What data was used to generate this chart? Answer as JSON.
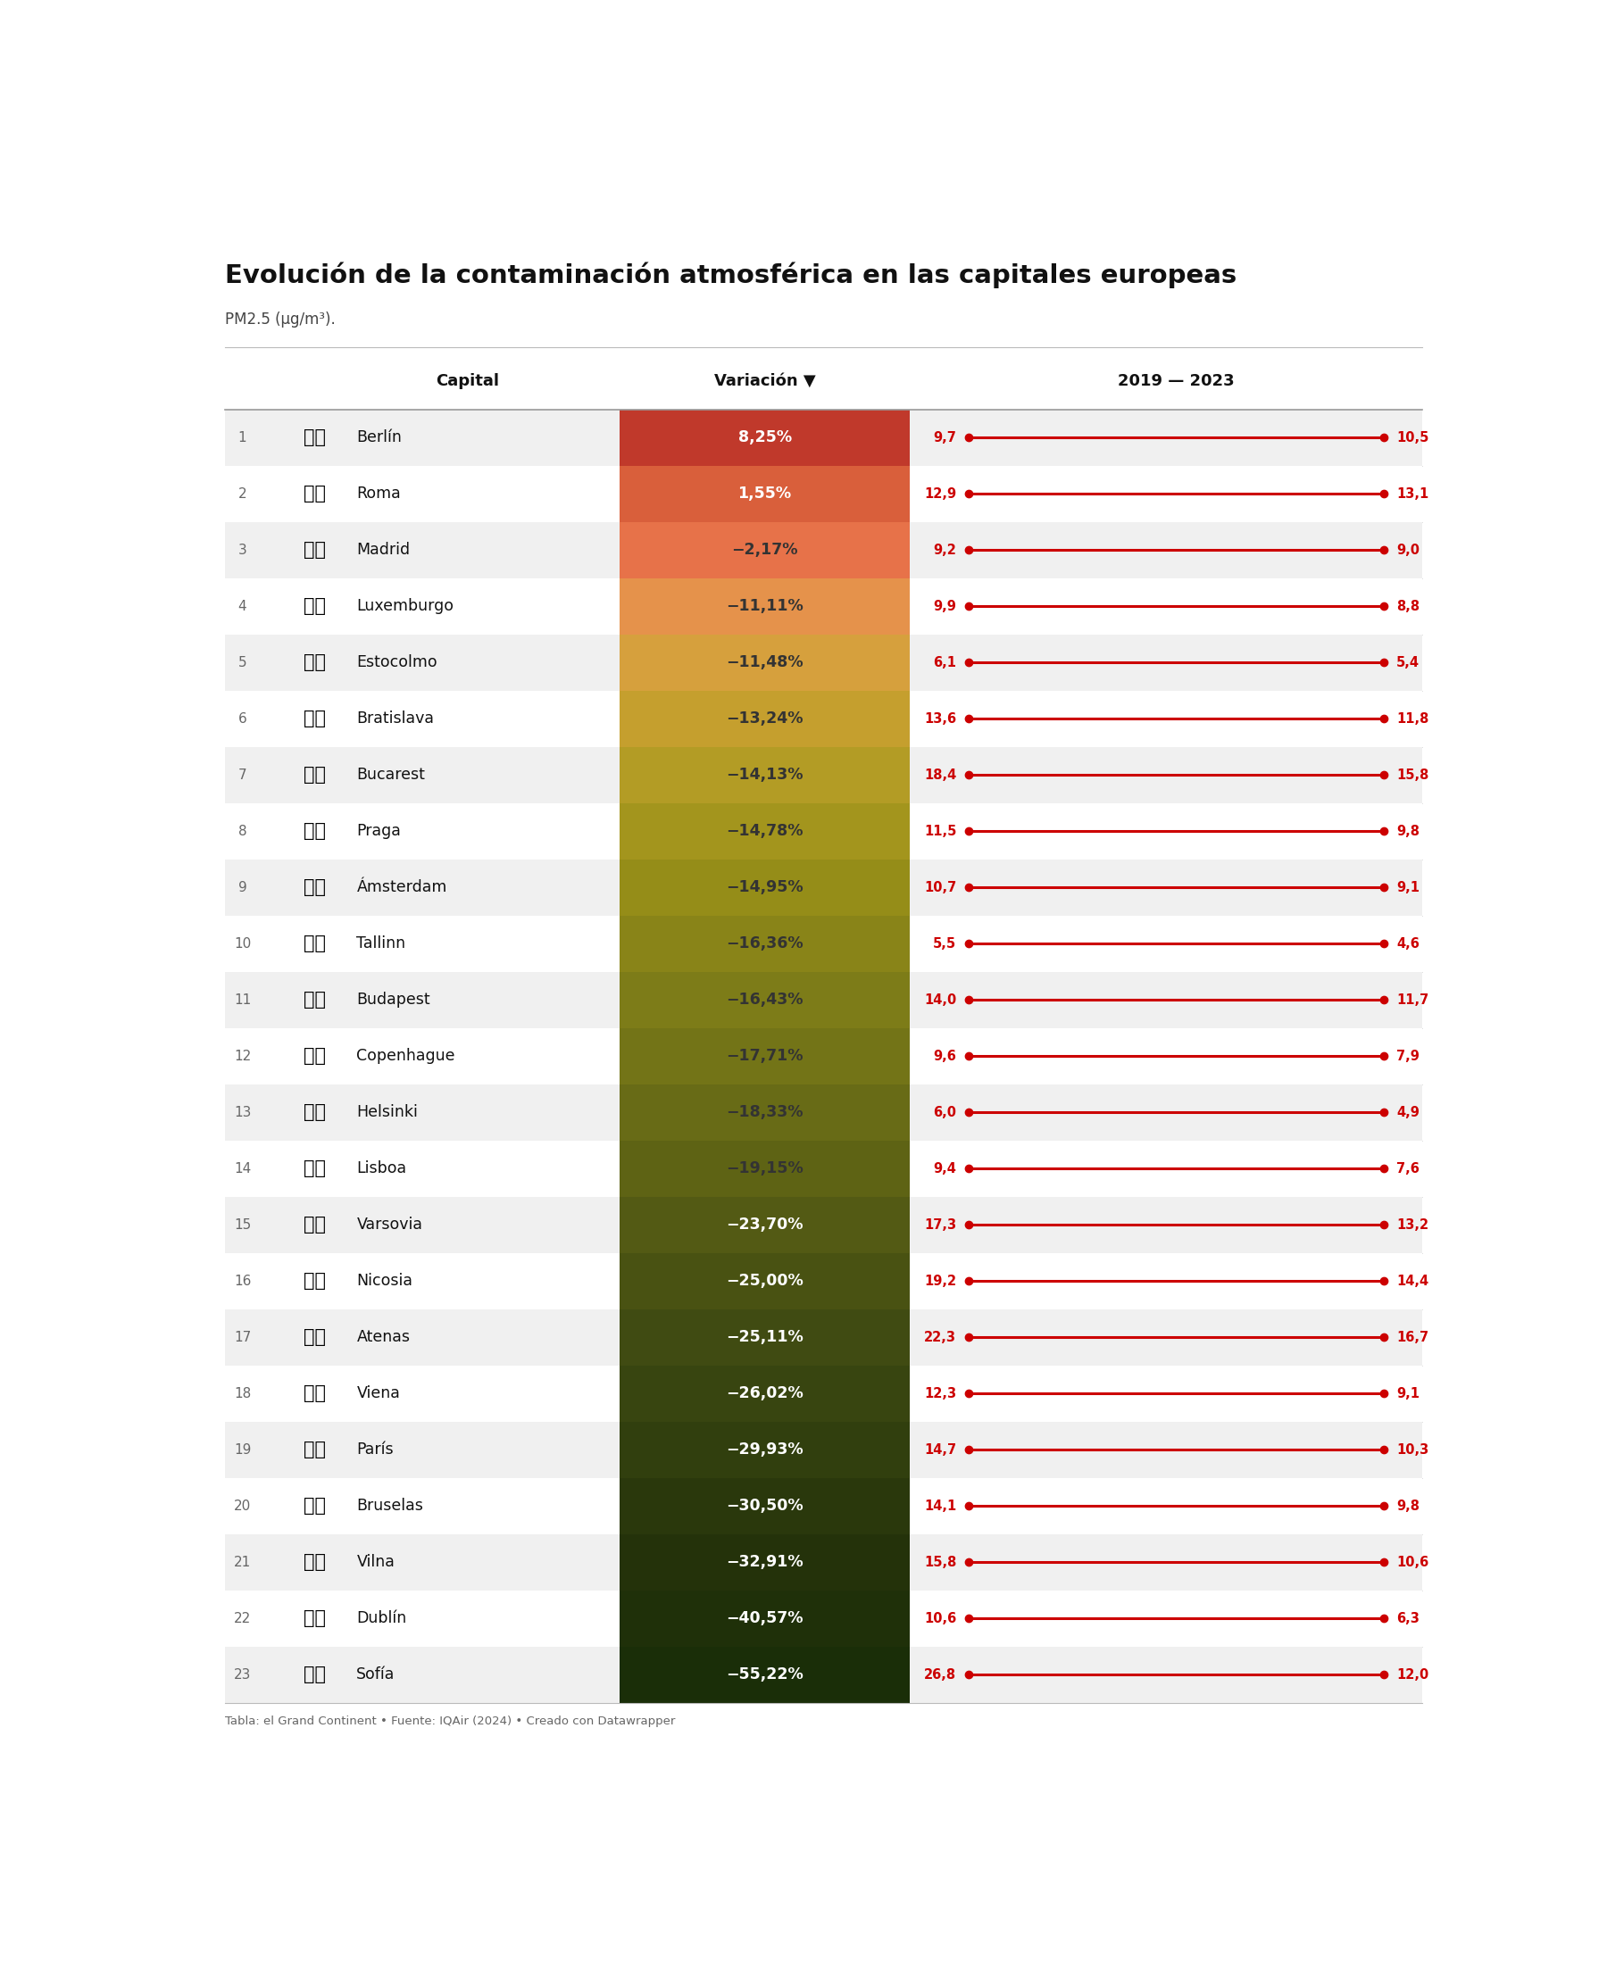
{
  "title": "Evolución de la contaminación atmosférica en las capitales europeas",
  "subtitle": "PM2.5 (μg/m³).",
  "footer": "Tabla: el Grand Continent • Fuente: IQAir (2024) • Creado con Datawrapper",
  "col_header_capital": "Capital",
  "col_header_variacion": "Variación ▼",
  "col_header_years": "2019 — 2023",
  "rows": [
    {
      "rank": 1,
      "city": "Berlín",
      "flag": "🇩🇪",
      "variacion": "8,25%",
      "val2019": 9.7,
      "val2023": 10.5
    },
    {
      "rank": 2,
      "city": "Roma",
      "flag": "🇮🇹",
      "variacion": "1,55%",
      "val2019": 12.9,
      "val2023": 13.1
    },
    {
      "rank": 3,
      "city": "Madrid",
      "flag": "🇪🇸",
      "variacion": "−2,17%",
      "val2019": 9.2,
      "val2023": 9.0
    },
    {
      "rank": 4,
      "city": "Luxemburgo",
      "flag": "🇱🇺",
      "variacion": "−11,11%",
      "val2019": 9.9,
      "val2023": 8.8
    },
    {
      "rank": 5,
      "city": "Estocolmo",
      "flag": "🇸🇪",
      "variacion": "−11,48%",
      "val2019": 6.1,
      "val2023": 5.4
    },
    {
      "rank": 6,
      "city": "Bratislava",
      "flag": "🇸🇰",
      "variacion": "−13,24%",
      "val2019": 13.6,
      "val2023": 11.8
    },
    {
      "rank": 7,
      "city": "Bucarest",
      "flag": "🇷🇴",
      "variacion": "−14,13%",
      "val2019": 18.4,
      "val2023": 15.8
    },
    {
      "rank": 8,
      "city": "Praga",
      "flag": "🇨🇿",
      "variacion": "−14,78%",
      "val2019": 11.5,
      "val2023": 9.8
    },
    {
      "rank": 9,
      "city": "Ámsterdam",
      "flag": "🇳🇱",
      "variacion": "−14,95%",
      "val2019": 10.7,
      "val2023": 9.1
    },
    {
      "rank": 10,
      "city": "Tallinn",
      "flag": "🇪🇪",
      "variacion": "−16,36%",
      "val2019": 5.5,
      "val2023": 4.6
    },
    {
      "rank": 11,
      "city": "Budapest",
      "flag": "🇭🇺",
      "variacion": "−16,43%",
      "val2019": 14.0,
      "val2023": 11.7
    },
    {
      "rank": 12,
      "city": "Copenhague",
      "flag": "🇩🇰",
      "variacion": "−17,71%",
      "val2019": 9.6,
      "val2023": 7.9
    },
    {
      "rank": 13,
      "city": "Helsinki",
      "flag": "🇫🇮",
      "variacion": "−18,33%",
      "val2019": 6.0,
      "val2023": 4.9
    },
    {
      "rank": 14,
      "city": "Lisboa",
      "flag": "🇵🇹",
      "variacion": "−19,15%",
      "val2019": 9.4,
      "val2023": 7.6
    },
    {
      "rank": 15,
      "city": "Varsovia",
      "flag": "🇵🇱",
      "variacion": "−23,70%",
      "val2019": 17.3,
      "val2023": 13.2
    },
    {
      "rank": 16,
      "city": "Nicosia",
      "flag": "🇨🇾",
      "variacion": "−25,00%",
      "val2019": 19.2,
      "val2023": 14.4
    },
    {
      "rank": 17,
      "city": "Atenas",
      "flag": "🇬🇷",
      "variacion": "−25,11%",
      "val2019": 22.3,
      "val2023": 16.7
    },
    {
      "rank": 18,
      "city": "Viena",
      "flag": "🇦🇹",
      "variacion": "−26,02%",
      "val2019": 12.3,
      "val2023": 9.1
    },
    {
      "rank": 19,
      "city": "París",
      "flag": "🇫🇷",
      "variacion": "−29,93%",
      "val2019": 14.7,
      "val2023": 10.3
    },
    {
      "rank": 20,
      "city": "Bruselas",
      "flag": "🇧🇪",
      "variacion": "−30,50%",
      "val2019": 14.1,
      "val2023": 9.8
    },
    {
      "rank": 21,
      "city": "Vilna",
      "flag": "🇱🇹",
      "variacion": "−32,91%",
      "val2019": 15.8,
      "val2023": 10.6
    },
    {
      "rank": 22,
      "city": "Dublín",
      "flag": "🇮🇪",
      "variacion": "−40,57%",
      "val2019": 10.6,
      "val2023": 6.3
    },
    {
      "rank": 23,
      "city": "Sofía",
      "flag": "🇧🇬",
      "variacion": "−55,22%",
      "val2019": 26.8,
      "val2023": 12.0
    }
  ],
  "color_stops": [
    [
      0.0,
      "#c0392b"
    ],
    [
      0.045,
      "#d95f3b"
    ],
    [
      0.091,
      "#e8734a"
    ],
    [
      0.13,
      "#e8904e"
    ],
    [
      0.174,
      "#d9a040"
    ],
    [
      0.217,
      "#caa030"
    ],
    [
      0.261,
      "#b89e28"
    ],
    [
      0.304,
      "#a89820"
    ],
    [
      0.348,
      "#9a9018"
    ],
    [
      0.391,
      "#8e8818"
    ],
    [
      0.435,
      "#828018"
    ],
    [
      0.478,
      "#787818"
    ],
    [
      0.522,
      "#6e7016"
    ],
    [
      0.565,
      "#646816"
    ],
    [
      0.609,
      "#5a6014"
    ],
    [
      0.652,
      "#505814"
    ],
    [
      0.696,
      "#465012"
    ],
    [
      0.739,
      "#3e4a12"
    ],
    [
      0.783,
      "#374410"
    ],
    [
      0.826,
      "#303e0e"
    ],
    [
      0.87,
      "#2a380c"
    ],
    [
      0.913,
      "#24320a"
    ],
    [
      1.0,
      "#1a2e08"
    ]
  ],
  "line_color": "#cc0000",
  "row_colors": [
    "#f0f0f0",
    "#ffffff"
  ]
}
